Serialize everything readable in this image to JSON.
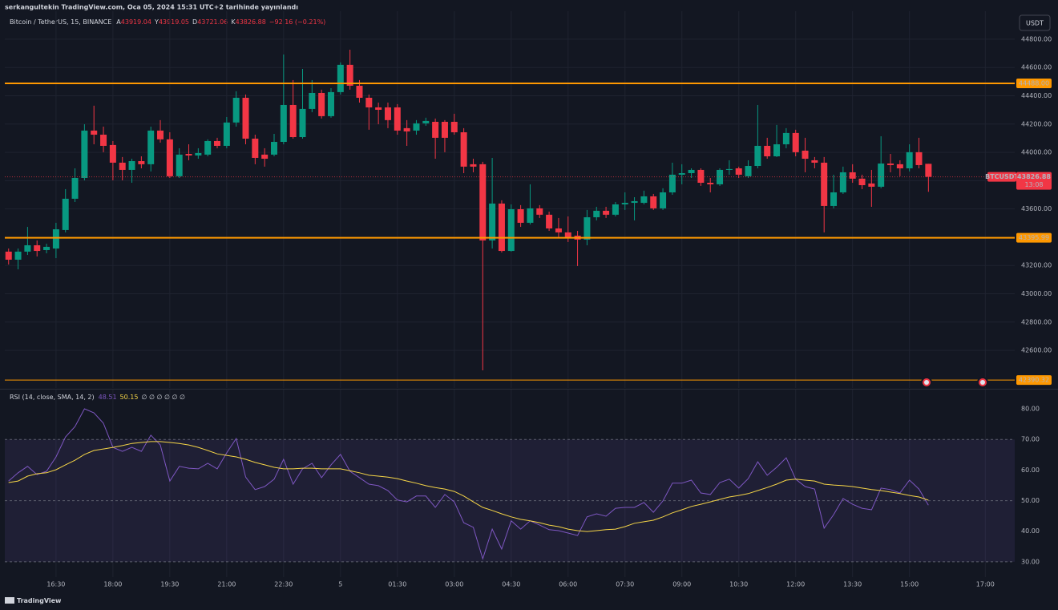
{
  "header": {
    "published": "serkangultekin TradingView.com, Oca 05, 2024 15:31 UTC+2 tarihinde yayınlandı",
    "ohlc_letters": [
      "A",
      "Y",
      "D",
      "K"
    ],
    "change": "−92.16 (−0.21%)",
    "currency": "USDT",
    "rsi_extra": "∅ ∅ ∅ ∅ ∅ ∅",
    "brand": "TradingView"
  },
  "chart_data": [
    {
      "type": "candlestick",
      "title": "Bitcoin / TetherUS, 15, BINANCE",
      "symbol": "BTCUSDT",
      "countdown": "13:08",
      "up_color": "#089981",
      "down_color": "#f23645",
      "level_color": "#ff9800",
      "open": [
        43298,
        43241,
        43298,
        43343,
        43309,
        43320,
        43451,
        43672,
        43819,
        44154,
        44125,
        44052,
        43927,
        43876,
        43938,
        43916,
        44154,
        44092,
        43831,
        43989,
        43978,
        43984,
        44080,
        44046,
        44211,
        44386,
        44097,
        43984,
        43984,
        44074,
        44335,
        44108,
        44307,
        44420,
        44256,
        44426,
        44619,
        44471,
        44386,
        44318,
        44318,
        44318,
        44171,
        44154,
        44205,
        44216,
        44216,
        44216,
        44142,
        43916,
        43916,
        43377,
        43638,
        43303,
        43598,
        43502,
        43604,
        43559,
        43462,
        43434,
        43411,
        43383,
        43541,
        43587,
        43559,
        43632,
        43643,
        43643,
        43689,
        43604,
        43717,
        43842,
        43853,
        43876,
        43785,
        43774,
        43876,
        43887,
        43831,
        43904,
        44046,
        43972,
        44057,
        44137,
        44012,
        43944,
        43927,
        43621,
        43717,
        43859,
        43814,
        43780,
        43757,
        43921,
        43916,
        43887,
        44001,
        43919.04
      ],
      "high": [
        43320,
        43320,
        43473,
        43377,
        43354,
        43502,
        43740,
        43887,
        44199,
        44330,
        44182,
        44080,
        43967,
        43955,
        43972,
        44182,
        44228,
        44142,
        44029,
        44057,
        44029,
        44092,
        44103,
        44250,
        44432,
        44409,
        44125,
        44029,
        44131,
        44692,
        44511,
        44590,
        44511,
        44443,
        44454,
        44636,
        44726,
        44511,
        44409,
        44352,
        44352,
        44341,
        44228,
        44228,
        44245,
        44239,
        44228,
        44273,
        44171,
        43955,
        43933,
        43961,
        43661,
        43632,
        43627,
        43774,
        43627,
        43581,
        43536,
        43547,
        43445,
        43593,
        43615,
        43615,
        43649,
        43717,
        43683,
        43729,
        43706,
        43746,
        43927,
        43916,
        43887,
        43887,
        43819,
        43887,
        43944,
        43899,
        43944,
        44335,
        44103,
        44194,
        44171,
        44160,
        44103,
        43967,
        43967,
        43842,
        43899,
        43916,
        43842,
        43876,
        44114,
        43989,
        43944,
        44057,
        44103,
        43919.05
      ],
      "low": [
        43207,
        43173,
        43275,
        43264,
        43286,
        43252,
        43434,
        43649,
        43802,
        44057,
        44001,
        43802,
        43802,
        43785,
        43887,
        43865,
        44069,
        43819,
        43819,
        43944,
        43955,
        43972,
        44029,
        44029,
        44182,
        44057,
        43916,
        43899,
        43972,
        44057,
        44097,
        44097,
        44284,
        44239,
        44245,
        44409,
        44443,
        44352,
        44160,
        44199,
        44171,
        44125,
        44046,
        44125,
        44188,
        43955,
        44001,
        44125,
        43853,
        43859,
        42459,
        43320,
        43292,
        43298,
        43473,
        43490,
        43536,
        43445,
        43400,
        43366,
        43196,
        43343,
        43519,
        43536,
        43547,
        43593,
        43519,
        43632,
        43593,
        43593,
        43700,
        43774,
        43819,
        43763,
        43717,
        43763,
        43842,
        43819,
        43819,
        43887,
        43955,
        43967,
        44029,
        43972,
        43859,
        43887,
        43434,
        43604,
        43706,
        43785,
        43740,
        43615,
        43746,
        43859,
        43831,
        43865,
        43887,
        43721.06
      ],
      "close": [
        43241,
        43298,
        43343,
        43303,
        43332,
        43456,
        43672,
        43819,
        44154,
        44125,
        44046,
        43927,
        43876,
        43938,
        43916,
        44154,
        44092,
        43831,
        43984,
        43978,
        43995,
        44080,
        44046,
        44211,
        44386,
        44097,
        43961,
        43955,
        44074,
        44335,
        44108,
        44307,
        44420,
        44256,
        44426,
        44619,
        44471,
        44386,
        44318,
        44301,
        44228,
        44154,
        44148,
        44205,
        44222,
        44103,
        44103,
        44142,
        43899,
        43899,
        43377,
        43638,
        43303,
        43598,
        43502,
        43604,
        43559,
        43462,
        43434,
        43394,
        43383,
        43541,
        43587,
        43559,
        43632,
        43643,
        43655,
        43689,
        43604,
        43717,
        43842,
        43853,
        43876,
        43785,
        43774,
        43876,
        43882,
        43842,
        43904,
        44046,
        43972,
        44057,
        44137,
        44001,
        43955,
        43927,
        43621,
        43717,
        43859,
        43814,
        43768,
        43757,
        43921,
        43910,
        43887,
        44001,
        43910,
        43826.88
      ],
      "levels": [
        {
          "value": 44488.0,
          "label": "44488.00"
        },
        {
          "value": 43395.99,
          "label": "43395.99"
        },
        {
          "value": 42390.32,
          "label": "42390.32"
        }
      ],
      "xlim": [
        -0.4,
        106.1
      ],
      "ylim": [
        42334,
        44998
      ],
      "yticks": [
        {
          "value": 42600,
          "label": "42600.00"
        },
        {
          "value": 42800,
          "label": "42800.00"
        },
        {
          "value": 43000,
          "label": "43000.00"
        },
        {
          "value": 43200,
          "label": "43200.00"
        },
        {
          "value": 43400,
          "label": "43400.00"
        },
        {
          "value": 43600,
          "label": "43600.00"
        },
        {
          "value": 43800,
          "label": "43800.00"
        },
        {
          "value": 44000,
          "label": "44000.00"
        },
        {
          "value": 44200,
          "label": "44200.00"
        },
        {
          "value": 44400,
          "label": "44400.00"
        },
        {
          "value": 44600,
          "label": "44600.00"
        },
        {
          "value": 44800,
          "label": "44800.00"
        }
      ],
      "grid": true
    },
    {
      "type": "line",
      "title": "RSI (14, close, SMA, 14, 2)",
      "series": [
        {
          "name": "RSI",
          "color": "#7e57c2",
          "values": [
            56.4,
            59.1,
            61.2,
            58.5,
            59.6,
            64.3,
            70.8,
            74.2,
            80.0,
            78.7,
            75.3,
            67.4,
            66.1,
            67.4,
            66.1,
            71.4,
            68.2,
            56.4,
            61.2,
            60.6,
            60.4,
            62.2,
            60.4,
            65.6,
            70.3,
            57.7,
            53.6,
            54.6,
            57.0,
            63.5,
            55.4,
            60.4,
            62.2,
            57.5,
            61.7,
            65.1,
            59.6,
            57.5,
            55.4,
            54.9,
            53.3,
            50.2,
            49.6,
            51.5,
            51.5,
            47.8,
            52.0,
            49.6,
            42.8,
            41.3,
            31.0,
            40.7,
            34.2,
            43.4,
            40.7,
            43.4,
            42.0,
            40.5,
            40.2,
            39.4,
            38.6,
            44.7,
            45.7,
            44.9,
            47.5,
            47.8,
            47.8,
            49.4,
            46.2,
            49.9,
            55.7,
            55.7,
            56.7,
            52.5,
            52.0,
            55.9,
            57.0,
            54.1,
            57.2,
            62.7,
            58.3,
            60.9,
            64.0,
            57.0,
            54.6,
            53.8,
            41.0,
            45.4,
            50.7,
            48.8,
            47.5,
            47.0,
            54.1,
            53.6,
            52.5,
            56.7,
            53.8,
            48.51
          ]
        },
        {
          "name": "SMA",
          "color": "#f5d547",
          "values": [
            55.9,
            56.4,
            58.0,
            58.8,
            59.1,
            60.1,
            61.7,
            63.2,
            65.1,
            66.4,
            66.9,
            67.4,
            68.0,
            68.7,
            69.0,
            69.3,
            69.3,
            69.0,
            68.7,
            68.2,
            67.4,
            66.4,
            65.3,
            64.8,
            64.3,
            63.5,
            62.5,
            61.7,
            60.9,
            60.4,
            60.4,
            60.6,
            60.6,
            60.4,
            60.4,
            60.4,
            59.8,
            59.1,
            58.3,
            58.0,
            57.7,
            57.2,
            56.4,
            55.7,
            54.9,
            54.3,
            53.8,
            53.0,
            51.5,
            49.6,
            47.8,
            46.8,
            45.7,
            44.7,
            43.9,
            43.4,
            42.8,
            42.0,
            41.5,
            40.7,
            40.2,
            39.9,
            40.2,
            40.5,
            40.7,
            41.5,
            42.6,
            43.1,
            43.6,
            44.7,
            46.0,
            47.0,
            48.1,
            48.8,
            49.6,
            50.4,
            51.2,
            51.7,
            52.3,
            53.3,
            54.3,
            55.4,
            56.7,
            57.0,
            56.7,
            56.4,
            55.4,
            55.1,
            54.9,
            54.6,
            54.1,
            53.6,
            53.3,
            52.8,
            52.3,
            51.7,
            51.2,
            50.15
          ]
        }
      ],
      "band": [
        30,
        70
      ],
      "band_color": "rgba(126,87,194,0.12)",
      "levels": [
        70,
        50,
        30
      ],
      "xlim": [
        -0.4,
        106.1
      ],
      "ylim": [
        25,
        86.3
      ],
      "yticks": [
        {
          "value": 30,
          "label": "30.00"
        },
        {
          "value": 40,
          "label": "40.00"
        },
        {
          "value": 50,
          "label": "50.00"
        },
        {
          "value": 60,
          "label": "60.00"
        },
        {
          "value": 70,
          "label": "70.00"
        },
        {
          "value": 80,
          "label": "80.00"
        }
      ],
      "xticks": [
        {
          "value": 5,
          "label": "16:30"
        },
        {
          "value": 11,
          "label": "18:00"
        },
        {
          "value": 17,
          "label": "19:30"
        },
        {
          "value": 23,
          "label": "21:00"
        },
        {
          "value": 29,
          "label": "22:30"
        },
        {
          "value": 35,
          "label": "5"
        },
        {
          "value": 41,
          "label": "01:30"
        },
        {
          "value": 47,
          "label": "03:00"
        },
        {
          "value": 53,
          "label": "04:30"
        },
        {
          "value": 59,
          "label": "06:00"
        },
        {
          "value": 65,
          "label": "07:30"
        },
        {
          "value": 71,
          "label": "09:00"
        },
        {
          "value": 77,
          "label": "10:30"
        },
        {
          "value": 83,
          "label": "12:00"
        },
        {
          "value": 89,
          "label": "13:30"
        },
        {
          "value": 95,
          "label": "15:00"
        },
        {
          "value": 103,
          "label": "17:00"
        }
      ],
      "grid": true
    }
  ]
}
